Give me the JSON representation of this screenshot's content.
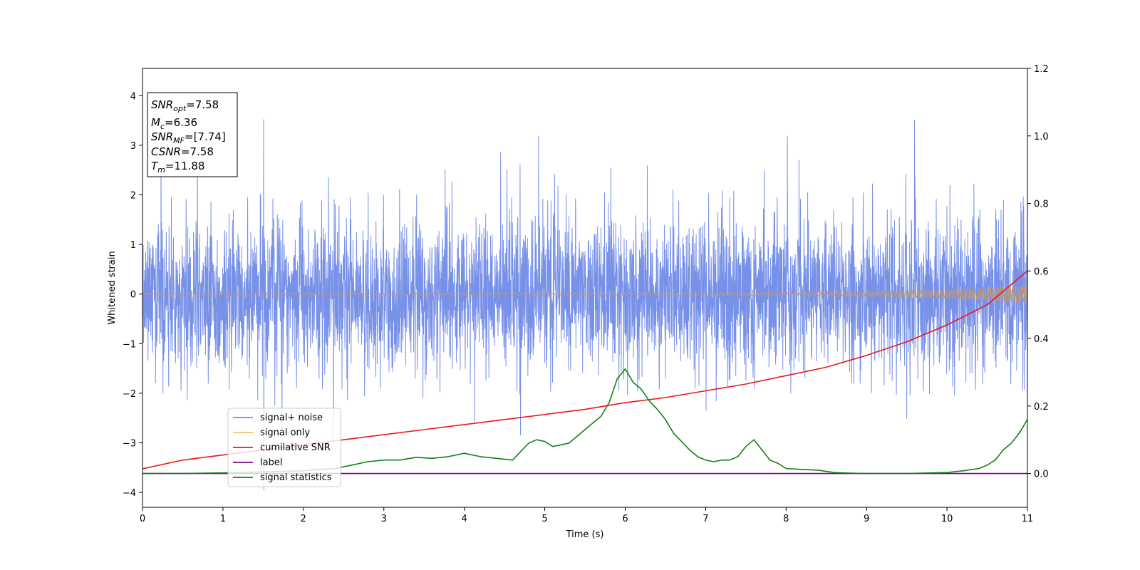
{
  "chart_data": {
    "type": "line",
    "xlabel": "Time (s)",
    "ylabel": "Whitened strain",
    "xlim": [
      0,
      11
    ],
    "ylim_left": [
      -4.3,
      4.55
    ],
    "ylim_right": [
      -0.1,
      1.2
    ],
    "x_ticks": [
      0,
      1,
      2,
      3,
      4,
      5,
      6,
      7,
      8,
      9,
      10,
      11
    ],
    "y_ticks_left": [
      -4,
      -3,
      -2,
      -1,
      0,
      1,
      2,
      3,
      4
    ],
    "y_ticks_right": [
      "0.0",
      "0.2",
      "0.4",
      "0.6",
      "0.8",
      "1.0",
      "1.2"
    ],
    "grid": false,
    "legend_position": "lower-left",
    "info_box": {
      "position": "top-left",
      "lines": [
        {
          "name": "SNR",
          "sub": "opt",
          "value": "=7.58"
        },
        {
          "name": "M",
          "sub": "c",
          "value": "=6.36"
        },
        {
          "name": "SNR",
          "sub": "MF",
          "value": "=[7.74]"
        },
        {
          "name": "CSNR",
          "sub": "",
          "value": "=7.58"
        },
        {
          "name": "T",
          "sub": "m",
          "value": "=11.88"
        }
      ]
    },
    "series": [
      {
        "name": "signal+ noise",
        "axis": "left",
        "color": "#7891e8",
        "kind": "noise_band",
        "description_values": {
          "typical_range": [
            -1.5,
            1.7
          ],
          "peaks_high": [
            2.6,
            3.2,
            3.84,
            3.78,
            3.33,
            3.88,
            4.18,
            3.4,
            3.0
          ],
          "peaks_low": [
            -2.9,
            -3.2,
            -3.27,
            -3.88,
            -3.6
          ]
        }
      },
      {
        "name": "signal only",
        "axis": "left",
        "color": "#f5c16a",
        "kind": "chirp_envelope",
        "x": [
          0,
          2,
          4,
          6,
          8,
          9,
          10,
          10.5,
          11
        ],
        "values": [
          0.01,
          0.012,
          0.015,
          0.02,
          0.03,
          0.045,
          0.08,
          0.12,
          0.17
        ]
      },
      {
        "name": "cumilative SNR",
        "axis": "right",
        "color": "#e8191a",
        "x": [
          0,
          0.5,
          1,
          1.5,
          2,
          2.5,
          3,
          3.5,
          4,
          4.5,
          5,
          5.5,
          6,
          6.5,
          7,
          7.5,
          8,
          8.5,
          9,
          9.5,
          10,
          10.5,
          11
        ],
        "values": [
          0.014,
          0.04,
          0.055,
          0.07,
          0.085,
          0.1,
          0.115,
          0.13,
          0.145,
          0.16,
          0.175,
          0.19,
          0.21,
          0.225,
          0.245,
          0.265,
          0.29,
          0.315,
          0.35,
          0.39,
          0.44,
          0.5,
          0.6
        ]
      },
      {
        "name": "label",
        "axis": "right",
        "color": "#800080",
        "x": [
          0,
          11
        ],
        "values": [
          0.0,
          0.0
        ]
      },
      {
        "name": "signal statistics",
        "axis": "right",
        "color": "#138013",
        "x": [
          0,
          0.5,
          1,
          1.5,
          2,
          2.2,
          2.4,
          2.6,
          2.8,
          3,
          3.2,
          3.4,
          3.6,
          3.8,
          4,
          4.2,
          4.4,
          4.6,
          4.8,
          4.9,
          5.0,
          5.1,
          5.2,
          5.3,
          5.4,
          5.5,
          5.6,
          5.7,
          5.8,
          5.9,
          6.0,
          6.1,
          6.2,
          6.3,
          6.4,
          6.5,
          6.6,
          6.7,
          6.8,
          6.9,
          7.0,
          7.1,
          7.2,
          7.3,
          7.4,
          7.5,
          7.6,
          7.7,
          7.8,
          7.9,
          8.0,
          8.2,
          8.4,
          8.6,
          8.8,
          9,
          9.5,
          10,
          10.2,
          10.4,
          10.5,
          10.6,
          10.7,
          10.8,
          10.9,
          11
        ],
        "values": [
          0.0,
          0.0,
          0.002,
          0.005,
          0.008,
          0.012,
          0.015,
          0.025,
          0.035,
          0.04,
          0.04,
          0.048,
          0.045,
          0.05,
          0.06,
          0.05,
          0.045,
          0.04,
          0.09,
          0.1,
          0.095,
          0.08,
          0.085,
          0.09,
          0.11,
          0.13,
          0.15,
          0.17,
          0.21,
          0.28,
          0.31,
          0.27,
          0.25,
          0.215,
          0.19,
          0.16,
          0.12,
          0.095,
          0.07,
          0.05,
          0.04,
          0.035,
          0.04,
          0.04,
          0.05,
          0.08,
          0.1,
          0.07,
          0.04,
          0.03,
          0.015,
          0.012,
          0.01,
          0.003,
          0.001,
          0.0,
          0.0,
          0.003,
          0.008,
          0.015,
          0.025,
          0.04,
          0.07,
          0.09,
          0.12,
          0.16
        ]
      }
    ]
  }
}
